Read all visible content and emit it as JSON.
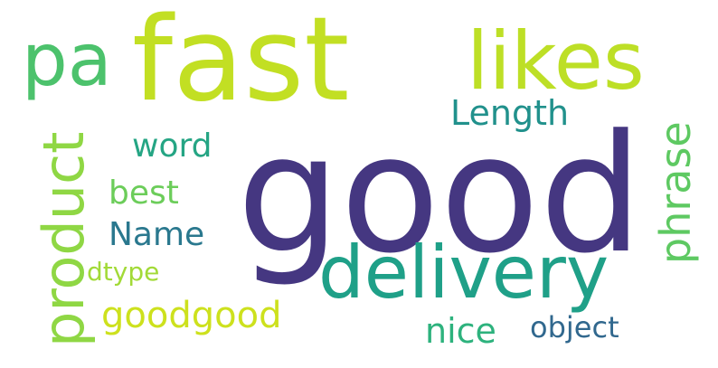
{
  "words": {
    "good": {
      "text": "good",
      "color": "#453781"
    },
    "fast": {
      "text": "fast",
      "color": "#c2df23"
    },
    "likes": {
      "text": "likes",
      "color": "#bddf26"
    },
    "pa": {
      "text": "pa",
      "color": "#4cc26c"
    },
    "delivery": {
      "text": "delivery",
      "color": "#1fa088"
    },
    "product": {
      "text": "product",
      "color": "#8fd744"
    },
    "length": {
      "text": "Length",
      "color": "#21918c"
    },
    "word": {
      "text": "word",
      "color": "#25a584"
    },
    "best": {
      "text": "best",
      "color": "#6ccd5a"
    },
    "name": {
      "text": "Name",
      "color": "#2a788e"
    },
    "dtype": {
      "text": "dtype",
      "color": "#a2da37"
    },
    "goodgood": {
      "text": "goodgood",
      "color": "#cde11d"
    },
    "phrase": {
      "text": "phrase",
      "color": "#5ec962"
    },
    "nice": {
      "text": "nice",
      "color": "#2db27d"
    },
    "object": {
      "text": "object",
      "color": "#31688e"
    }
  }
}
